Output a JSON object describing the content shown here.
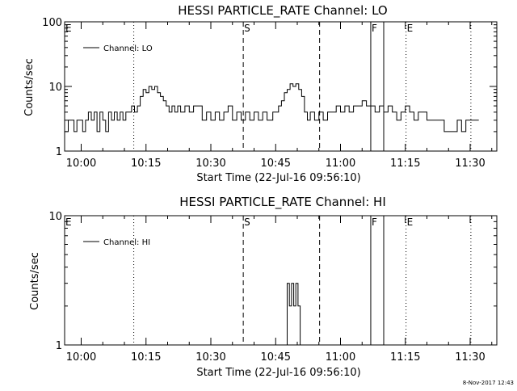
{
  "footer": {
    "date_stamp": "8-Nov-2017 12:43"
  },
  "chart_data": [
    {
      "type": "line",
      "title": "HESSI PARTICLE_RATE Channel: LO",
      "xlabel": "Start Time (22-Jul-16 09:56:10)",
      "ylabel": "Counts/sec",
      "y_scale": "log",
      "ylim": [
        1,
        100
      ],
      "y_ticks": [
        {
          "value": 1,
          "label": "1"
        },
        {
          "value": 10,
          "label": "10"
        },
        {
          "value": 100,
          "label": "100"
        }
      ],
      "xlim": [
        "09:56:10",
        "11:36:10"
      ],
      "x_ticks": [
        "10:00",
        "10:15",
        "10:30",
        "10:45",
        "11:00",
        "11:15",
        "11:30"
      ],
      "legend": {
        "position": "top-left",
        "label": "Channel: LO"
      },
      "markers": [
        {
          "time": "09:56:10",
          "style": "none",
          "label": "E"
        },
        {
          "time": "10:12:10",
          "style": "dotted",
          "label": ""
        },
        {
          "time": "10:37:30",
          "style": "dashed",
          "label": "S"
        },
        {
          "time": "10:55:10",
          "style": "dashed",
          "label": ""
        },
        {
          "time": "11:07:00",
          "style": "solid",
          "label": "F"
        },
        {
          "time": "11:10:00",
          "style": "solid",
          "label": ""
        },
        {
          "time": "11:15:10",
          "style": "dotted",
          "label": "E"
        },
        {
          "time": "11:30:10",
          "style": "dotted",
          "label": ""
        }
      ],
      "series": [
        {
          "name": "Channel: LO",
          "x": [
            "09:56:10",
            "09:57:00",
            "09:57:40",
            "09:58:20",
            "09:59:00",
            "09:59:40",
            "10:00:20",
            "10:01:00",
            "10:01:40",
            "10:02:20",
            "10:03:00",
            "10:03:40",
            "10:04:20",
            "10:05:00",
            "10:05:40",
            "10:06:20",
            "10:07:00",
            "10:07:40",
            "10:08:20",
            "10:09:00",
            "10:09:40",
            "10:10:20",
            "10:11:00",
            "10:11:40",
            "10:12:20",
            "10:13:00",
            "10:13:40",
            "10:14:20",
            "10:15:00",
            "10:15:40",
            "10:16:20",
            "10:17:00",
            "10:17:40",
            "10:18:20",
            "10:19:00",
            "10:19:40",
            "10:20:20",
            "10:21:00",
            "10:21:40",
            "10:22:20",
            "10:23:00",
            "10:24:00",
            "10:25:00",
            "10:26:00",
            "10:27:00",
            "10:28:00",
            "10:29:00",
            "10:30:00",
            "10:31:00",
            "10:32:00",
            "10:33:00",
            "10:34:00",
            "10:35:00",
            "10:36:00",
            "10:37:00",
            "10:38:00",
            "10:39:00",
            "10:40:00",
            "10:41:00",
            "10:42:00",
            "10:43:00",
            "10:43:40",
            "10:44:20",
            "10:45:00",
            "10:45:40",
            "10:46:20",
            "10:47:00",
            "10:47:40",
            "10:48:20",
            "10:49:00",
            "10:49:40",
            "10:50:20",
            "10:51:00",
            "10:51:40",
            "10:52:20",
            "10:53:00",
            "10:54:00",
            "10:55:00",
            "10:56:00",
            "10:57:00",
            "10:58:00",
            "10:59:00",
            "11:00:00",
            "11:01:00",
            "11:02:00",
            "11:03:00",
            "11:04:00",
            "11:05:00",
            "11:06:00",
            "11:07:00",
            "11:08:00",
            "11:09:00",
            "11:10:00",
            "11:11:00",
            "11:12:00",
            "11:13:00",
            "11:14:00",
            "11:15:00",
            "11:16:00",
            "11:17:00",
            "11:18:00",
            "11:19:00",
            "11:20:00",
            "11:21:00",
            "11:22:00",
            "11:23:00",
            "11:24:00",
            "11:25:00",
            "11:26:00",
            "11:27:00",
            "11:28:00",
            "11:29:00",
            "11:30:00",
            "11:31:00",
            "11:32:00"
          ],
          "y": [
            2,
            3,
            3,
            2,
            3,
            3,
            2,
            3,
            4,
            3,
            4,
            2,
            4,
            3,
            2,
            4,
            3,
            4,
            3,
            4,
            3,
            4,
            4,
            5,
            4,
            5,
            7,
            9,
            8,
            10,
            9,
            10,
            8,
            7,
            6,
            5,
            4,
            5,
            4,
            5,
            4,
            5,
            4,
            5,
            5,
            3,
            4,
            3,
            4,
            3,
            4,
            5,
            3,
            4,
            3,
            4,
            3,
            4,
            3,
            4,
            3,
            3,
            4,
            4,
            5,
            6,
            8,
            9,
            11,
            10,
            11,
            9,
            7,
            4,
            3,
            4,
            3,
            4,
            3,
            4,
            4,
            5,
            4,
            5,
            4,
            5,
            5,
            6,
            5,
            5,
            4,
            5,
            4,
            5,
            4,
            3,
            4,
            5,
            4,
            3,
            4,
            4,
            3,
            3,
            3,
            3,
            2,
            2,
            2,
            3,
            2,
            3,
            3,
            3,
            3
          ]
        }
      ]
    },
    {
      "type": "line",
      "title": "HESSI PARTICLE_RATE Channel: HI",
      "xlabel": "Start Time (22-Jul-16 09:56:10)",
      "ylabel": "Counts/sec",
      "y_scale": "log",
      "ylim": [
        1,
        10
      ],
      "y_ticks": [
        {
          "value": 1,
          "label": "1"
        },
        {
          "value": 10,
          "label": "10"
        }
      ],
      "xlim": [
        "09:56:10",
        "11:36:10"
      ],
      "x_ticks": [
        "10:00",
        "10:15",
        "10:30",
        "10:45",
        "11:00",
        "11:15",
        "11:30"
      ],
      "legend": {
        "position": "top-left",
        "label": "Channel: HI"
      },
      "markers": [
        {
          "time": "09:56:10",
          "style": "none",
          "label": "E"
        },
        {
          "time": "10:12:10",
          "style": "dotted",
          "label": ""
        },
        {
          "time": "10:37:30",
          "style": "dashed",
          "label": "S"
        },
        {
          "time": "10:55:10",
          "style": "dashed",
          "label": ""
        },
        {
          "time": "11:07:00",
          "style": "solid",
          "label": "F"
        },
        {
          "time": "11:10:00",
          "style": "solid",
          "label": ""
        },
        {
          "time": "11:15:10",
          "style": "dotted",
          "label": "E"
        },
        {
          "time": "11:30:10",
          "style": "dotted",
          "label": ""
        }
      ],
      "series": [
        {
          "name": "Channel: HI",
          "x": [
            "10:47:10",
            "10:47:40",
            "10:48:10",
            "10:48:40",
            "10:49:10",
            "10:49:40",
            "10:50:10",
            "10:50:40"
          ],
          "y": [
            1,
            3,
            2,
            3,
            2,
            3,
            2,
            1
          ]
        }
      ]
    }
  ]
}
